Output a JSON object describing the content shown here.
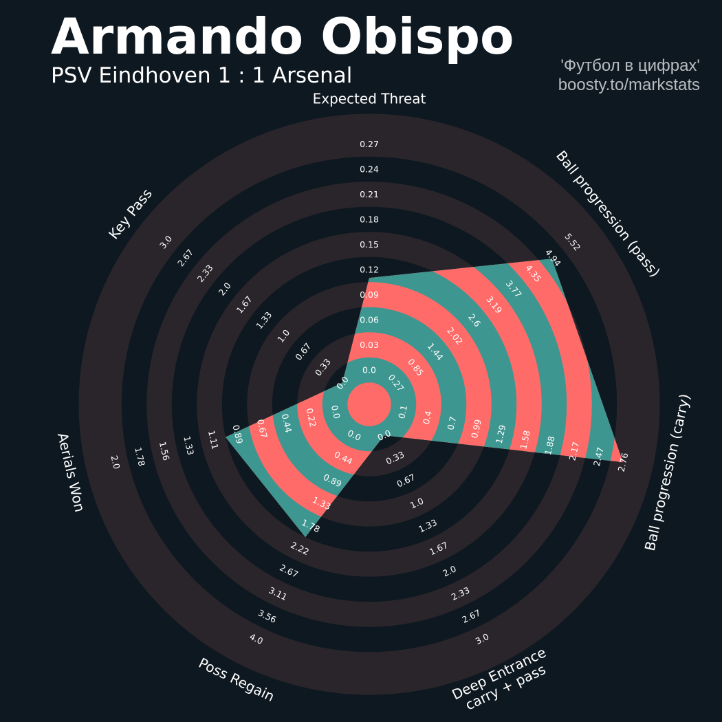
{
  "header": {
    "title": "Armando Obispo",
    "subtitle": "PSV Eindhoven 1 : 1 Arsenal",
    "credit_line1": "'Футбол в цифрах'",
    "credit_line2": "boosty.to/markstats"
  },
  "colors": {
    "background": "#0e1820",
    "ring_dark": "#0e1820",
    "ring_light": "#2a252b",
    "player_fill": "#3d9690",
    "player_alt": "#ff6b68",
    "text": "#ffffff",
    "credit_text": "#b8bcc0"
  },
  "chart_data": {
    "type": "radar",
    "title": "Armando Obispo",
    "subtitle": "PSV Eindhoven 1 : 1 Arsenal",
    "params": [
      {
        "label": "Expected Threat",
        "label2": "",
        "min": 0.0,
        "max": 0.27,
        "value": 0.11,
        "rings": [
          "0.0",
          "0.03",
          "0.06",
          "0.09",
          "0.12",
          "0.15",
          "0.18",
          "0.21",
          "0.24",
          "0.27"
        ]
      },
      {
        "label": "Ball progression (pass)",
        "label2": "",
        "min": 0.27,
        "max": 5.52,
        "value": 4.9,
        "rings": [
          "0.27",
          "0.85",
          "1.44",
          "2.02",
          "2.6",
          "3.19",
          "3.77",
          "4.35",
          "4.94",
          "5.52"
        ]
      },
      {
        "label": "Ball progression (carry)",
        "label2": "",
        "min": 0.1,
        "max": 2.76,
        "value": 2.76,
        "rings": [
          "0.1",
          "0.4",
          "0.7",
          "0.99",
          "1.29",
          "1.58",
          "1.88",
          "2.17",
          "2.47",
          "2.76"
        ]
      },
      {
        "label": "Deep Entrance",
        "label2": "carry + pass",
        "min": 0.0,
        "max": 3.0,
        "value": 0.0,
        "rings": [
          "0.0",
          "0.33",
          "0.67",
          "1.0",
          "1.33",
          "1.67",
          "2.0",
          "2.33",
          "2.67",
          "3.0"
        ]
      },
      {
        "label": "Poss Regain",
        "label2": "",
        "min": 0.0,
        "max": 4.0,
        "value": 2.0,
        "rings": [
          "0.0",
          "0.44",
          "0.89",
          "1.33",
          "1.78",
          "2.22",
          "2.67",
          "3.11",
          "3.56",
          "4.0"
        ]
      },
      {
        "label": "Aerials Won",
        "label2": "",
        "min": 0.0,
        "max": 2.0,
        "value": 1.0,
        "rings": [
          "0.0",
          "0.22",
          "0.44",
          "0.67",
          "0.89",
          "1.11",
          "1.33",
          "1.56",
          "1.78",
          "2.0"
        ]
      },
      {
        "label": "Key Pass",
        "label2": "",
        "min": 0.0,
        "max": 3.0,
        "value": 0.0,
        "rings": [
          "0.0",
          "0.33",
          "0.67",
          "1.0",
          "1.33",
          "1.67",
          "2.0",
          "2.33",
          "2.67",
          "3.0"
        ]
      }
    ]
  }
}
